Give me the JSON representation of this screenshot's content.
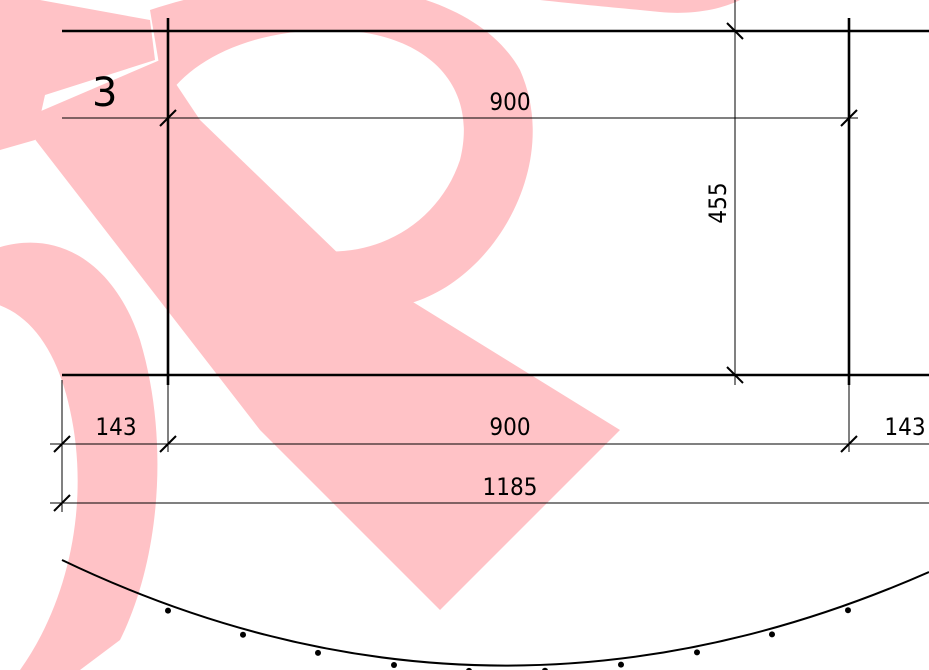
{
  "drawing": {
    "label": "3",
    "dimensions": {
      "top_width": "900",
      "height": "455",
      "left_offset": "143",
      "bottom_width": "900",
      "right_offset": "143",
      "overall_width": "1185"
    },
    "watermark_letter": "R"
  },
  "colors": {
    "line": "#000000",
    "watermark": "#ffc2c6",
    "background": "#ffffff"
  }
}
